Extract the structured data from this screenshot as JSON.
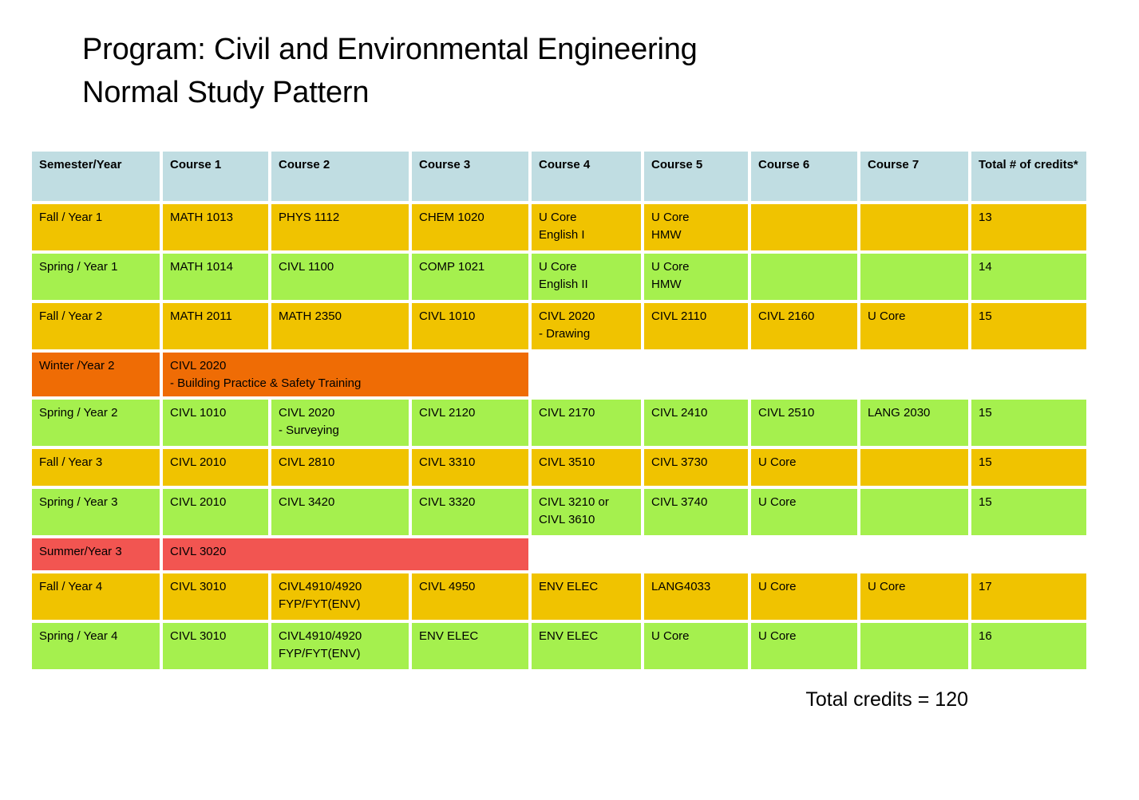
{
  "title": {
    "line1": "Program: Civil and Environmental Engineering",
    "line2": "Normal Study Pattern"
  },
  "colors": {
    "header_bg": "#c0dde2",
    "fall_bg": "#f0c300",
    "spring_bg": "#a5f04e",
    "winter_bg": "#ef6c05",
    "summer_bg": "#f25551",
    "text": "#000000"
  },
  "table": {
    "headers": [
      "Semester/Year",
      "Course 1",
      "Course 2",
      "Course 3",
      "Course 4",
      "Course 5",
      "Course 6",
      "Course 7",
      "Total # of credits*"
    ],
    "rows": [
      {
        "semester": "Fall / Year 1",
        "type": "fall",
        "courses": [
          "MATH 1013",
          "PHYS 1112",
          "CHEM 1020",
          "U Core\nEnglish I",
          "U Core\nHMW",
          "",
          ""
        ],
        "credits": "13"
      },
      {
        "semester": "Spring / Year 1",
        "type": "spring",
        "courses": [
          "MATH 1014",
          "CIVL 1100",
          "COMP 1021",
          "U Core\nEnglish II",
          "U Core\nHMW",
          "",
          ""
        ],
        "credits": "14"
      },
      {
        "semester": "Fall / Year 2",
        "type": "fall",
        "courses": [
          "MATH 2011",
          "MATH 2350",
          "CIVL 1010",
          "CIVL 2020\n- Drawing",
          "CIVL 2110",
          "CIVL 2160",
          "U Core"
        ],
        "credits": "15"
      },
      {
        "semester": "Winter /Year 2",
        "type": "winter",
        "span_text": "CIVL 2020\n- Building Practice & Safety Training"
      },
      {
        "semester": "Spring / Year 2",
        "type": "spring",
        "courses": [
          "CIVL 1010",
          "CIVL 2020\n- Surveying",
          "CIVL 2120",
          "CIVL 2170",
          "CIVL 2410",
          "CIVL 2510",
          "LANG 2030"
        ],
        "credits": "15"
      },
      {
        "semester": "Fall / Year 3",
        "type": "fall",
        "courses": [
          "CIVL 2010",
          "CIVL 2810",
          "CIVL 3310",
          "CIVL 3510",
          "CIVL 3730",
          "U Core",
          ""
        ],
        "credits": "15"
      },
      {
        "semester": "Spring / Year 3",
        "type": "spring",
        "courses": [
          "CIVL 2010",
          "CIVL 3420",
          "CIVL 3320",
          "CIVL 3210 or\nCIVL 3610",
          "CIVL 3740",
          "U Core",
          ""
        ],
        "credits": "15"
      },
      {
        "semester": "Summer/Year 3",
        "type": "summer",
        "span_text": "CIVL 3020"
      },
      {
        "semester": "Fall / Year 4",
        "type": "fall",
        "courses": [
          "CIVL 3010",
          "CIVL4910/4920\nFYP/FYT(ENV)",
          "CIVL 4950",
          "ENV ELEC",
          "LANG4033",
          "U Core",
          "U Core"
        ],
        "credits": "17"
      },
      {
        "semester": "Spring / Year 4",
        "type": "spring",
        "courses": [
          "CIVL 3010",
          "CIVL4910/4920\nFYP/FYT(ENV)",
          "ENV ELEC",
          "ENV ELEC",
          "U Core",
          "U Core",
          ""
        ],
        "credits": "16"
      }
    ]
  },
  "footer": {
    "total_credits": "Total credits = 120"
  }
}
